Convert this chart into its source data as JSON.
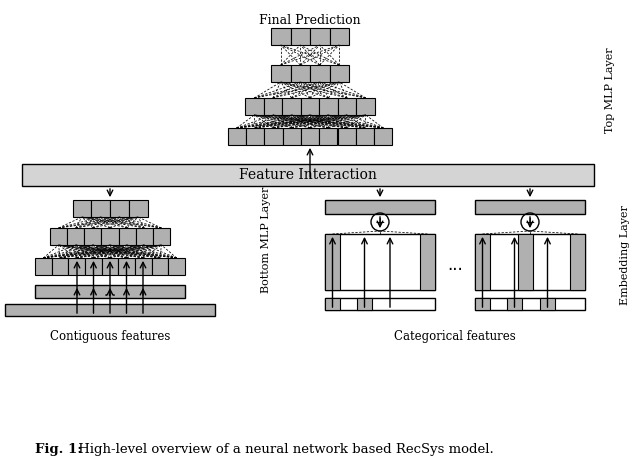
{
  "title_bold": "Fig. 1:",
  "title_rest": " High-level overview of a neural network based RecSys model.",
  "final_prediction_label": "Final Prediction",
  "feature_interaction_label": "Feature Interaction",
  "contiguous_features_label": "Contiguous features",
  "categorical_features_label": "Categorical features",
  "top_mlp_label": "Top MLP Layer",
  "bottom_mlp_label": "Bottom MLP Layer",
  "embedding_label": "Embedding Layer",
  "dots_label": "...",
  "gray": "#b0b0b0",
  "light_gray": "#d4d4d4",
  "white": "#ffffff",
  "black": "#000000",
  "bg": "#ffffff"
}
